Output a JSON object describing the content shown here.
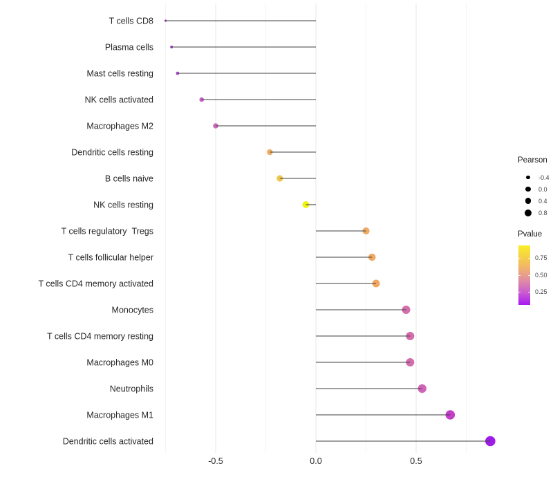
{
  "chart_data": {
    "type": "scatter",
    "variant": "lollipop",
    "orientation": "horizontal",
    "title": "",
    "xlabel": "",
    "ylabel": "",
    "grid": "on",
    "background": "#ffffff",
    "x_axis": {
      "tick_labels": [
        "-0.5",
        "0.0",
        "0.5"
      ],
      "tick_values": [
        -0.5,
        0.0,
        0.5
      ],
      "minor_gridlines": [
        -0.75,
        -0.25,
        0.25,
        0.75
      ],
      "xlim": [
        -0.78,
        0.92
      ]
    },
    "points": [
      {
        "label": "T cells CD8",
        "pearson": -0.75,
        "pvalue_approx": 0.14,
        "color": "#9643bd",
        "radius_px": 1.6
      },
      {
        "label": "Plasma cells",
        "pearson": -0.72,
        "pvalue_approx": 0.15,
        "color": "#9c43c4",
        "radius_px": 2.1
      },
      {
        "label": "Mast cells resting",
        "pearson": -0.69,
        "pvalue_approx": 0.17,
        "color": "#a74cc3",
        "radius_px": 2.4
      },
      {
        "label": "NK cells activated",
        "pearson": -0.57,
        "pvalue_approx": 0.24,
        "color": "#c263c0",
        "radius_px": 3.3
      },
      {
        "label": "Macrophages M2",
        "pearson": -0.5,
        "pvalue_approx": 0.28,
        "color": "#cb6cb8",
        "radius_px": 3.8
      },
      {
        "label": "Dendritic cells resting",
        "pearson": -0.23,
        "pvalue_approx": 0.6,
        "color": "#f0ae66",
        "radius_px": 4.3
      },
      {
        "label": "B cells naive",
        "pearson": -0.18,
        "pvalue_approx": 0.72,
        "color": "#edc84e",
        "radius_px": 4.6
      },
      {
        "label": "NK cells resting",
        "pearson": -0.05,
        "pvalue_approx": 0.9,
        "color": "#eff312",
        "radius_px": 5.0
      },
      {
        "label": "T cells regulatory  Tregs",
        "pearson": 0.25,
        "pvalue_approx": 0.61,
        "color": "#eeab63",
        "radius_px": 5.1
      },
      {
        "label": "T cells follicular helper",
        "pearson": 0.28,
        "pvalue_approx": 0.61,
        "color": "#f0a963",
        "radius_px": 5.3
      },
      {
        "label": "T cells CD4 memory activated",
        "pearson": 0.3,
        "pvalue_approx": 0.62,
        "color": "#f0a660",
        "radius_px": 5.5
      },
      {
        "label": "Monocytes",
        "pearson": 0.45,
        "pvalue_approx": 0.33,
        "color": "#d56fab",
        "radius_px": 6.0
      },
      {
        "label": "T cells CD4 memory resting",
        "pearson": 0.47,
        "pvalue_approx": 0.33,
        "color": "#d36cab",
        "radius_px": 6.0
      },
      {
        "label": "Macrophages M0",
        "pearson": 0.47,
        "pvalue_approx": 0.33,
        "color": "#d36cae",
        "radius_px": 6.0
      },
      {
        "label": "Neutrophils",
        "pearson": 0.53,
        "pvalue_approx": 0.28,
        "color": "#cf63b5",
        "radius_px": 6.2
      },
      {
        "label": "Macrophages M1",
        "pearson": 0.67,
        "pvalue_approx": 0.2,
        "color": "#c33fc9",
        "radius_px": 6.8
      },
      {
        "label": "Dendritic cells activated",
        "pearson": 0.87,
        "pvalue_approx": 0.06,
        "color": "#9e1ce8",
        "radius_px": 7.3
      }
    ],
    "legend": {
      "size": {
        "title": "Pearson",
        "entries": [
          {
            "label": "-0.4",
            "radius_px": 2.7
          },
          {
            "label": "0.0",
            "radius_px": 3.7
          },
          {
            "label": "0.4",
            "radius_px": 4.4
          },
          {
            "label": "0.8",
            "radius_px": 5.0
          }
        ]
      },
      "color": {
        "title": "Pvalue",
        "tick_labels": [
          "0.75",
          "0.50",
          "0.25"
        ],
        "gradient_top": "#f9ee26",
        "gradient_bottom": "#a819f2",
        "gradient_stops": [
          "#f9ee26 0%",
          "#f6d243 18%",
          "#f2b568 36%",
          "#e69a92 52%",
          "#d87cb4 66%",
          "#c654d4 82%",
          "#a819f2 100%"
        ]
      }
    },
    "style_colors": {
      "segment": "#3f3f3f",
      "grid_major": "#e7e7e7",
      "grid_minor": "#f4f4f4",
      "axis_text": "#262626",
      "legend_text": "#404040",
      "legend_dot": "#000000"
    }
  }
}
